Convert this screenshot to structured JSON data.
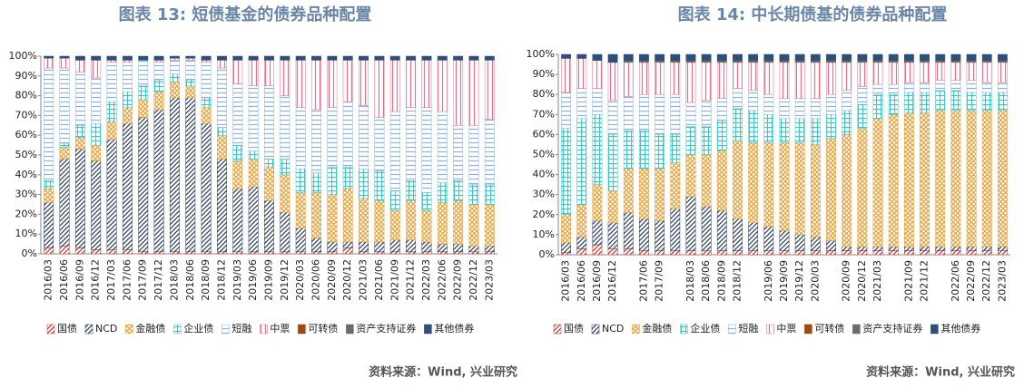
{
  "chart_data": [
    {
      "type": "stacked_bar",
      "title": "图表 13: 短债基金的债券品种配置",
      "source": "资料来源：Wind, 兴业研究",
      "categories": [
        "2016/03",
        "2016/06",
        "2016/09",
        "2016/12",
        "2017/03",
        "2017/06",
        "2017/09",
        "2017/12",
        "2018/03",
        "2018/06",
        "2018/09",
        "2018/12",
        "2019/03",
        "2019/06",
        "2019/09",
        "2019/12",
        "2020/03",
        "2020/06",
        "2020/09",
        "2020/12",
        "2021/03",
        "2021/06",
        "2021/09",
        "2021/12",
        "2022/03",
        "2022/06",
        "2022/09",
        "2022/12",
        "2023/03"
      ],
      "ylim": [
        0,
        100
      ],
      "yticks": [
        {
          "value": 0,
          "label": "0%"
        },
        {
          "value": 10,
          "label": "10%"
        },
        {
          "value": 20,
          "label": "20%"
        },
        {
          "value": 30,
          "label": "30%"
        },
        {
          "value": 40,
          "label": "40%"
        },
        {
          "value": 50,
          "label": "50%"
        },
        {
          "value": 60,
          "label": "60%"
        },
        {
          "value": 70,
          "label": "70%"
        },
        {
          "value": 80,
          "label": "80%"
        },
        {
          "value": 90,
          "label": "90%"
        },
        {
          "value": 100,
          "label": "100%"
        }
      ],
      "series": [
        {
          "name": "国债",
          "color": "#c0392b",
          "pattern": "diag",
          "values": [
            3,
            4,
            3,
            2,
            2,
            2,
            1,
            1,
            1,
            1,
            1,
            1,
            1,
            1,
            1,
            1,
            1,
            1,
            1,
            3,
            1,
            1,
            1,
            1,
            1,
            1,
            1,
            1,
            1
          ]
        },
        {
          "name": "NCD",
          "color": "#2c3e5c",
          "pattern": "diag",
          "values": [
            23,
            44,
            50,
            45,
            56,
            64,
            68,
            72,
            78,
            78,
            65,
            47,
            32,
            33,
            26,
            20,
            12,
            7,
            5,
            3,
            5,
            5,
            6,
            6,
            5,
            4,
            4,
            3,
            3
          ]
        },
        {
          "name": "金融债",
          "color": "#e8a33c",
          "pattern": "cross",
          "values": [
            7,
            6,
            6,
            8,
            9,
            8,
            9,
            9,
            8,
            6,
            8,
            12,
            14,
            14,
            17,
            19,
            18,
            23,
            24,
            27,
            22,
            21,
            15,
            20,
            16,
            21,
            22,
            21,
            21
          ]
        },
        {
          "name": "企业债",
          "color": "#3cc8c8",
          "pattern": "grid",
          "values": [
            4,
            2,
            6,
            11,
            10,
            8,
            7,
            6,
            4,
            3,
            5,
            4,
            8,
            4,
            4,
            8,
            12,
            10,
            14,
            11,
            15,
            15,
            10,
            10,
            9,
            10,
            10,
            10,
            10
          ]
        },
        {
          "name": "短融",
          "color": "#8fb3d9",
          "pattern": "hlines",
          "values": [
            57,
            38,
            27,
            23,
            20,
            15,
            13,
            9,
            7,
            10,
            18,
            30,
            31,
            33,
            37,
            32,
            31,
            32,
            30,
            33,
            32,
            27,
            40,
            37,
            43,
            36,
            28,
            30,
            33
          ]
        },
        {
          "name": "中票",
          "color": "#e8708c",
          "pattern": "vlines",
          "values": [
            5,
            5,
            6,
            9,
            1,
            1,
            0,
            1,
            1,
            1,
            1,
            4,
            12,
            13,
            13,
            18,
            24,
            25,
            24,
            21,
            23,
            29,
            26,
            24,
            24,
            26,
            33,
            33,
            30
          ]
        },
        {
          "name": "可转债",
          "color": "#9c4a12",
          "pattern": "solid",
          "values": [
            0,
            0,
            0,
            0,
            0,
            0,
            0,
            0,
            0,
            0,
            0,
            0,
            0,
            0,
            0,
            0,
            0,
            0,
            0,
            0,
            0,
            0,
            0,
            0,
            0,
            0,
            0,
            0,
            0
          ]
        },
        {
          "name": "资产支持证券",
          "color": "#6b6b6b",
          "pattern": "solid",
          "values": [
            0,
            0,
            0,
            0,
            0,
            0,
            0,
            0,
            0,
            0,
            0,
            0,
            0,
            0,
            0,
            0,
            0,
            0,
            0,
            0,
            0,
            0,
            0,
            0,
            0,
            0,
            0,
            0,
            0
          ]
        },
        {
          "name": "其他债券",
          "color": "#2e4f7a",
          "pattern": "solid",
          "values": [
            1,
            1,
            2,
            2,
            2,
            2,
            2,
            2,
            1,
            1,
            2,
            2,
            2,
            2,
            2,
            2,
            2,
            2,
            2,
            2,
            2,
            2,
            2,
            2,
            2,
            2,
            2,
            2,
            2
          ]
        }
      ]
    },
    {
      "type": "stacked_bar",
      "title": "图表 14: 中长期债基的债券品种配置",
      "source": "资料来源：Wind, 兴业研究",
      "categories": [
        "2016/03",
        "2016/06",
        "2016/09",
        "2016/12",
        null,
        "2017/06",
        "2017/09",
        null,
        "2018/03",
        "2018/06",
        "2018/09",
        "2018/12",
        null,
        "2019/06",
        "2019/09",
        "2019/12",
        "2020/03",
        null,
        "2020/09",
        "2020/12",
        "2021/03",
        null,
        "2021/09",
        "2021/12",
        null,
        "2022/06",
        "2022/09",
        "2022/12",
        "2023/03"
      ],
      "ylim": [
        0,
        100
      ],
      "yticks": [
        {
          "value": 0,
          "label": "0%"
        },
        {
          "value": 10,
          "label": "10%"
        },
        {
          "value": 20,
          "label": "20%"
        },
        {
          "value": 30,
          "label": "30%"
        },
        {
          "value": 40,
          "label": "40%"
        },
        {
          "value": 50,
          "label": "50%"
        },
        {
          "value": 60,
          "label": "60%"
        },
        {
          "value": 70,
          "label": "70%"
        },
        {
          "value": 80,
          "label": "80%"
        },
        {
          "value": 90,
          "label": "90%"
        },
        {
          "value": 100,
          "label": "100%"
        }
      ],
      "series": [
        {
          "name": "国债",
          "color": "#c0392b",
          "pattern": "diag",
          "values": [
            1,
            3,
            5,
            3,
            3,
            2,
            2,
            2,
            2,
            2,
            2,
            2,
            2,
            2,
            2,
            2,
            2,
            2,
            2,
            2,
            2,
            2,
            2,
            2,
            2,
            2,
            2,
            2,
            2
          ]
        },
        {
          "name": "NCD",
          "color": "#2c3e5c",
          "pattern": "diag",
          "values": [
            5,
            6,
            12,
            13,
            18,
            16,
            15,
            21,
            27,
            22,
            20,
            16,
            14,
            12,
            10,
            8,
            7,
            5,
            2,
            2,
            2,
            2,
            2,
            2,
            2,
            2,
            2,
            2,
            2
          ]
        },
        {
          "name": "金融债",
          "color": "#e8a33c",
          "pattern": "cross",
          "values": [
            14,
            16,
            18,
            16,
            22,
            25,
            26,
            23,
            21,
            26,
            30,
            39,
            40,
            42,
            44,
            46,
            46,
            51,
            56,
            59,
            64,
            66,
            67,
            67,
            68,
            68,
            68,
            68,
            68
          ]
        },
        {
          "name": "企业债",
          "color": "#3cc8c8",
          "pattern": "grid",
          "values": [
            43,
            43,
            35,
            28,
            19,
            19,
            17,
            14,
            14,
            14,
            15,
            16,
            16,
            14,
            12,
            12,
            13,
            12,
            12,
            12,
            12,
            10,
            10,
            10,
            10,
            10,
            9,
            9,
            9
          ]
        },
        {
          "name": "短融",
          "color": "#8fb3d9",
          "pattern": "hlines",
          "values": [
            18,
            15,
            13,
            17,
            17,
            18,
            20,
            20,
            12,
            13,
            11,
            10,
            10,
            10,
            10,
            10,
            10,
            10,
            10,
            9,
            5,
            5,
            5,
            5,
            5,
            5,
            6,
            5,
            5
          ]
        },
        {
          "name": "中票",
          "color": "#e8708c",
          "pattern": "vlines",
          "values": [
            17,
            15,
            14,
            19,
            17,
            16,
            16,
            16,
            20,
            19,
            18,
            13,
            14,
            16,
            18,
            18,
            18,
            16,
            14,
            12,
            11,
            11,
            10,
            10,
            9,
            9,
            9,
            10,
            10
          ]
        },
        {
          "name": "可转债",
          "color": "#9c4a12",
          "pattern": "solid",
          "values": [
            0,
            0,
            0,
            0,
            0,
            0,
            0,
            0,
            0,
            0,
            0,
            0,
            0,
            0,
            0,
            0,
            0,
            0,
            0,
            0,
            0,
            0,
            0,
            0,
            0,
            0,
            0,
            0,
            0
          ]
        },
        {
          "name": "资产支持证券",
          "color": "#6b6b6b",
          "pattern": "solid",
          "values": [
            0,
            0,
            0,
            0,
            1,
            1,
            1,
            1,
            1,
            1,
            1,
            1,
            1,
            1,
            1,
            1,
            1,
            1,
            1,
            1,
            1,
            1,
            1,
            1,
            1,
            1,
            1,
            1,
            1
          ]
        },
        {
          "name": "其他债券",
          "color": "#2e4f7a",
          "pattern": "solid",
          "values": [
            2,
            2,
            3,
            4,
            3,
            3,
            3,
            3,
            3,
            3,
            3,
            3,
            3,
            3,
            3,
            3,
            3,
            3,
            3,
            3,
            3,
            3,
            3,
            3,
            3,
            3,
            3,
            3,
            3
          ]
        }
      ]
    }
  ]
}
